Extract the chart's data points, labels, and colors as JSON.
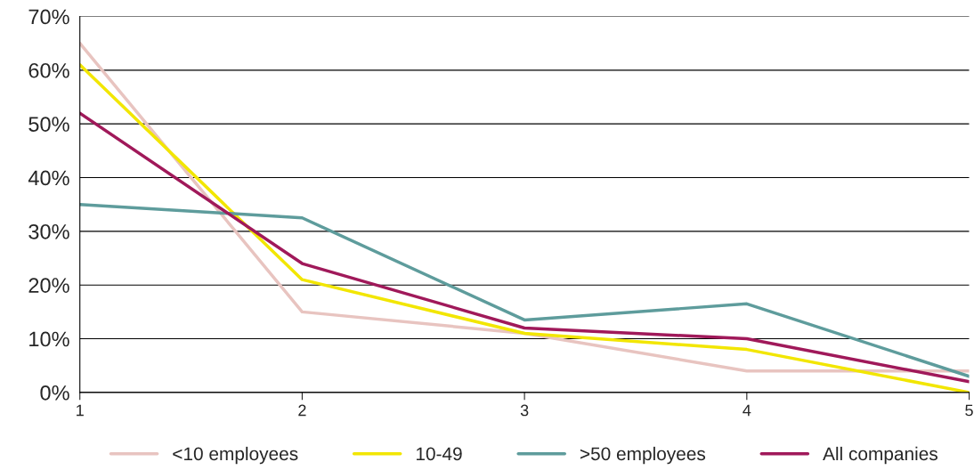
{
  "chart_data": {
    "type": "line",
    "x": [
      1,
      2,
      3,
      4,
      5
    ],
    "series": [
      {
        "name": "<10 employees",
        "color": "#e8c4c0",
        "values": [
          65,
          15,
          11,
          4,
          4
        ]
      },
      {
        "name": "10-49",
        "color": "#f2e600",
        "values": [
          61,
          21,
          11,
          8,
          0
        ]
      },
      {
        "name": ">50 employees",
        "color": "#5e9c9c",
        "values": [
          35,
          32.5,
          13.5,
          16.5,
          3
        ]
      },
      {
        "name": "All companies",
        "color": "#a0195a",
        "values": [
          52,
          24,
          12,
          10,
          2
        ]
      }
    ],
    "xlim": [
      1,
      5
    ],
    "xticks": [
      1,
      2,
      3,
      4,
      5
    ],
    "ylim": [
      0,
      70
    ],
    "yticks": [
      {
        "value": 0,
        "label": "0%"
      },
      {
        "value": 10,
        "label": "10%"
      },
      {
        "value": 20,
        "label": "20%"
      },
      {
        "value": 30,
        "label": "30%"
      },
      {
        "value": 40,
        "label": "40%"
      },
      {
        "value": 50,
        "label": "50%"
      },
      {
        "value": 60,
        "label": "60%"
      },
      {
        "value": 70,
        "label": "70%"
      }
    ],
    "grid": "y",
    "legend": "bottom",
    "marker": "none",
    "line_style": "solid"
  }
}
